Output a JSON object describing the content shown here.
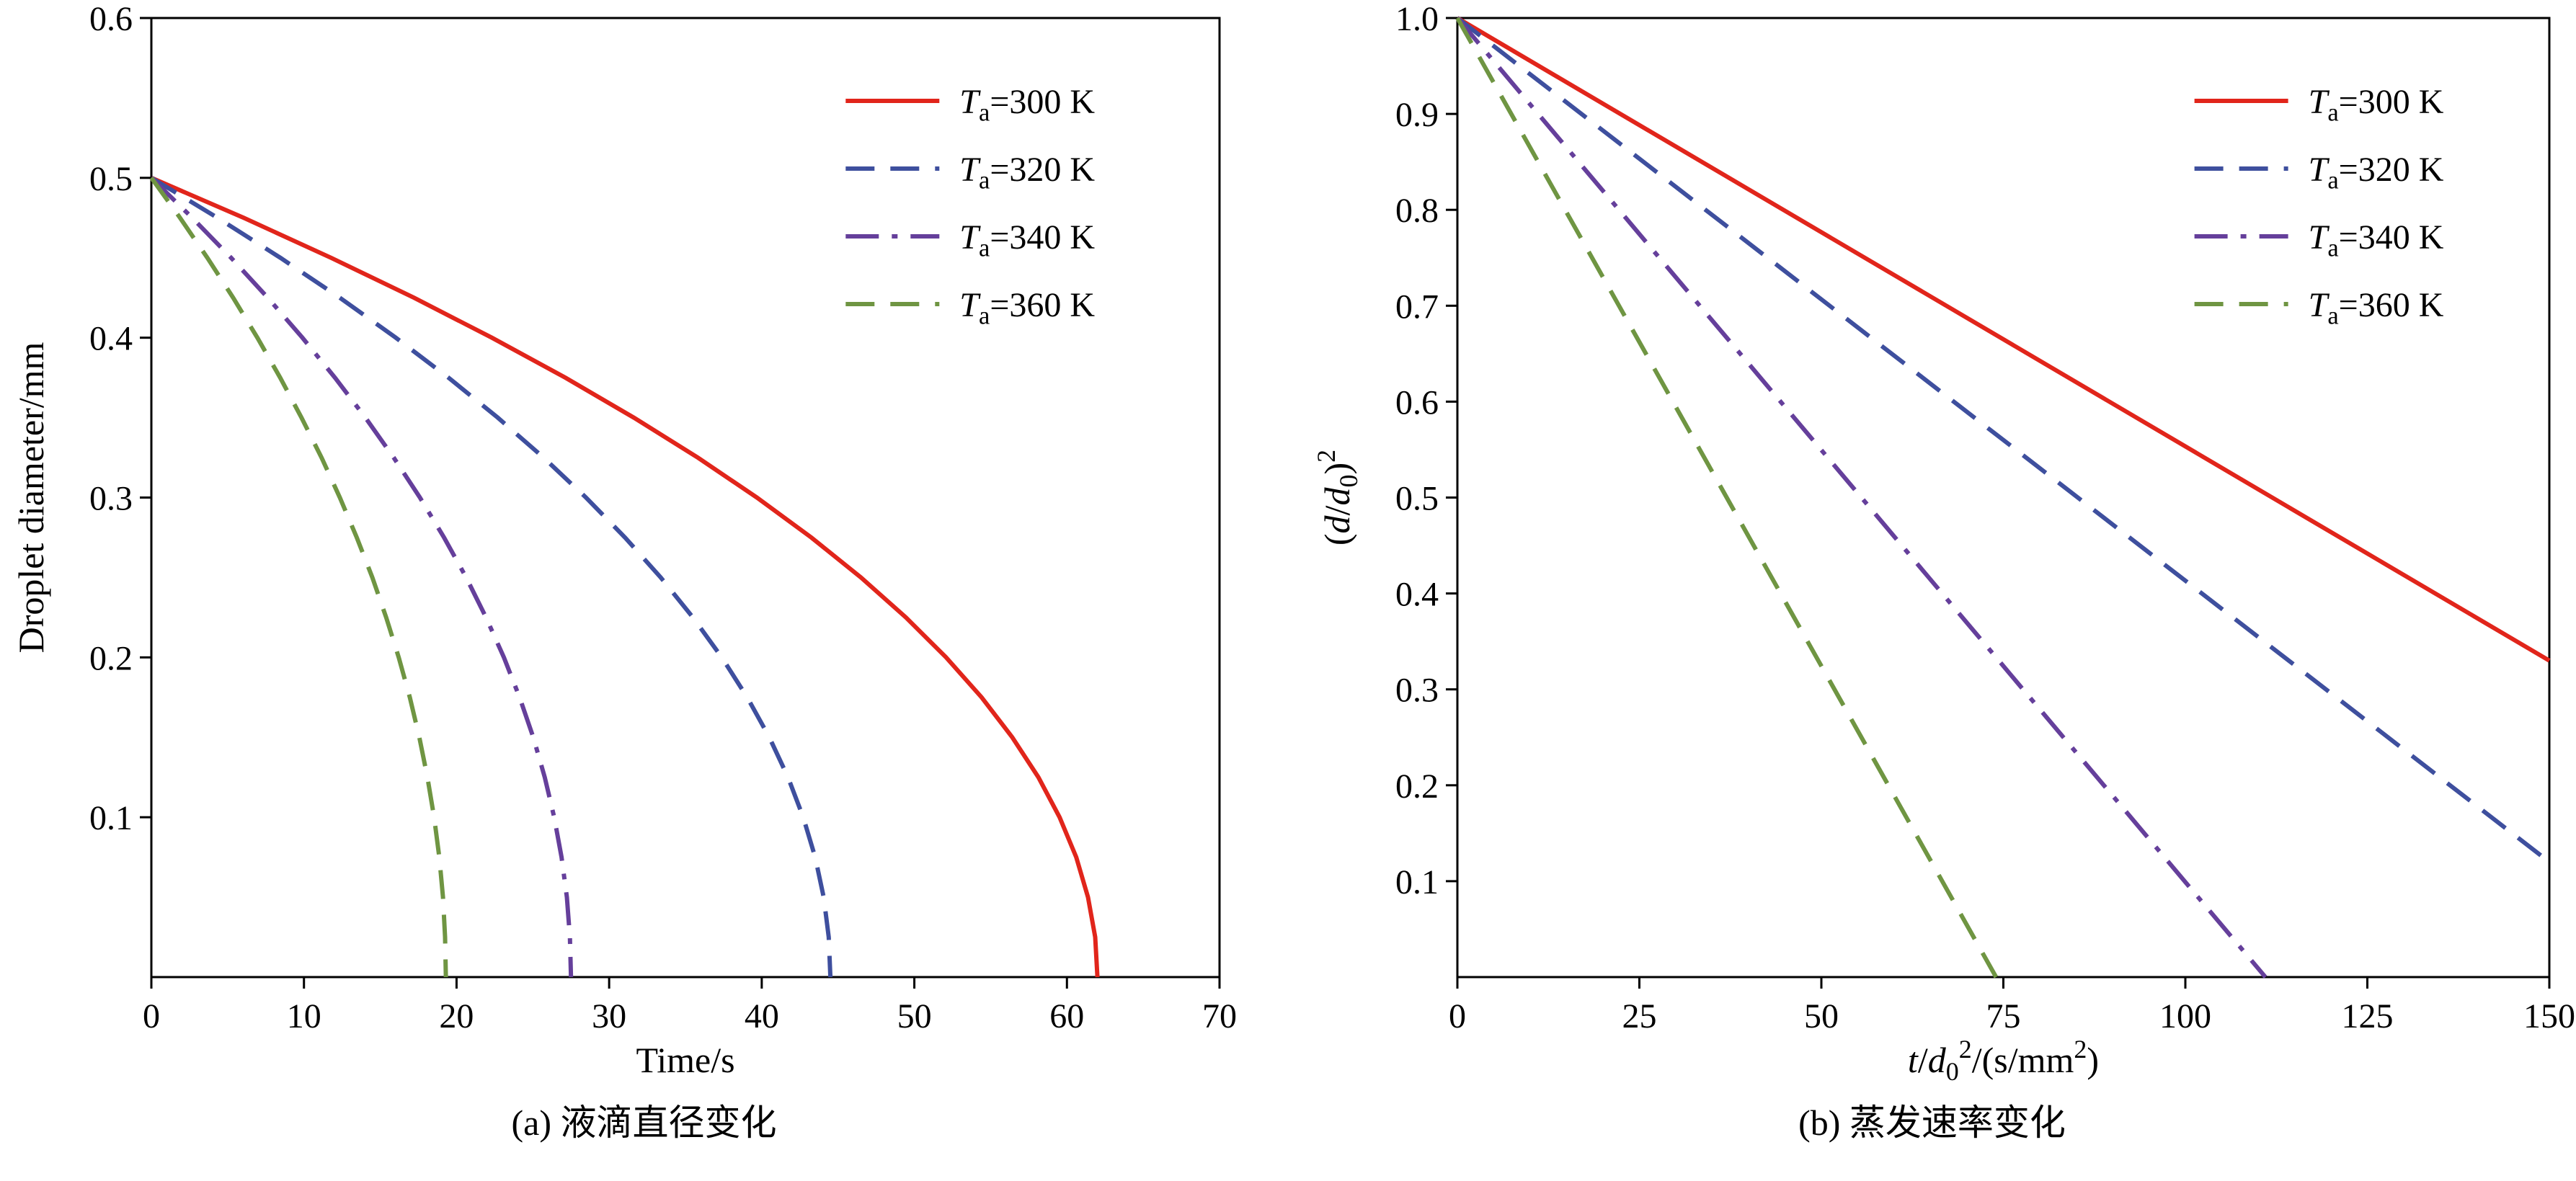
{
  "figure": {
    "background": "#ffffff",
    "axis_color": "#000000"
  },
  "chart_data": [
    {
      "id": "chart-a",
      "type": "line",
      "caption": "(a) 液滴直径变化",
      "xlabel": "Time/s",
      "ylabel": "Droplet diameter/mm",
      "xlim": [
        0,
        70
      ],
      "ylim": [
        0,
        0.6
      ],
      "xticks": [
        [
          0,
          "0"
        ],
        [
          10,
          "10"
        ],
        [
          20,
          "20"
        ],
        [
          30,
          "30"
        ],
        [
          40,
          "40"
        ],
        [
          50,
          "50"
        ],
        [
          60,
          "60"
        ],
        [
          70,
          "70"
        ]
      ],
      "yticks": [
        [
          0.1,
          "0.1"
        ],
        [
          0.2,
          "0.2"
        ],
        [
          0.3,
          "0.3"
        ],
        [
          0.4,
          "0.4"
        ],
        [
          0.5,
          "0.5"
        ],
        [
          0.6,
          "0.6"
        ]
      ],
      "grid": false,
      "legend_position": "top-right",
      "series": [
        {
          "label": "Ta=300 K",
          "label_rich": [
            {
              "t": "T",
              "i": true
            },
            {
              "t": "a",
              "sub": true
            },
            {
              "t": "=300 K"
            }
          ],
          "color": "#e1251b",
          "style": "solid",
          "points": [
            [
              0,
              0.5
            ],
            [
              6.05,
              0.475
            ],
            [
              11.78,
              0.45
            ],
            [
              17.21,
              0.425
            ],
            [
              22.32,
              0.4
            ],
            [
              27.13,
              0.375
            ],
            [
              31.62,
              0.35
            ],
            [
              35.81,
              0.325
            ],
            [
              39.68,
              0.3
            ],
            [
              43.25,
              0.275
            ],
            [
              46.5,
              0.25
            ],
            [
              49.45,
              0.225
            ],
            [
              52.08,
              0.2
            ],
            [
              54.41,
              0.175
            ],
            [
              56.42,
              0.15
            ],
            [
              58.13,
              0.125
            ],
            [
              59.52,
              0.1
            ],
            [
              60.61,
              0.075
            ],
            [
              61.38,
              0.05
            ],
            [
              61.85,
              0.025
            ],
            [
              62,
              0
            ]
          ]
        },
        {
          "label": "Ta=320 K",
          "label_rich": [
            {
              "t": "T",
              "i": true
            },
            {
              "t": "a",
              "sub": true
            },
            {
              "t": "=320 K"
            }
          ],
          "color": "#3e4f9e",
          "style": "dashed",
          "points": [
            [
              0,
              0.5
            ],
            [
              4.34,
              0.475
            ],
            [
              8.46,
              0.45
            ],
            [
              12.35,
              0.425
            ],
            [
              16.02,
              0.4
            ],
            [
              19.47,
              0.375
            ],
            [
              22.7,
              0.35
            ],
            [
              25.7,
              0.325
            ],
            [
              28.48,
              0.3
            ],
            [
              31.04,
              0.275
            ],
            [
              33.38,
              0.25
            ],
            [
              35.49,
              0.225
            ],
            [
              37.38,
              0.2
            ],
            [
              39.05,
              0.175
            ],
            [
              40.5,
              0.15
            ],
            [
              41.72,
              0.125
            ],
            [
              42.72,
              0.1
            ],
            [
              43.5,
              0.075
            ],
            [
              44.06,
              0.05
            ],
            [
              44.39,
              0.025
            ],
            [
              44.5,
              0
            ]
          ]
        },
        {
          "label": "Ta=340 K",
          "label_rich": [
            {
              "t": "T",
              "i": true
            },
            {
              "t": "a",
              "sub": true
            },
            {
              "t": "=340 K"
            }
          ],
          "color": "#653f9b",
          "style": "dashdot",
          "points": [
            [
              0,
              0.5
            ],
            [
              2.68,
              0.475
            ],
            [
              5.23,
              0.45
            ],
            [
              7.63,
              0.425
            ],
            [
              9.9,
              0.4
            ],
            [
              12.03,
              0.375
            ],
            [
              14.03,
              0.35
            ],
            [
              15.88,
              0.325
            ],
            [
              17.6,
              0.3
            ],
            [
              19.18,
              0.275
            ],
            [
              20.63,
              0.25
            ],
            [
              21.93,
              0.225
            ],
            [
              23.1,
              0.2
            ],
            [
              24.13,
              0.175
            ],
            [
              25.03,
              0.15
            ],
            [
              25.78,
              0.125
            ],
            [
              26.4,
              0.1
            ],
            [
              26.88,
              0.075
            ],
            [
              27.23,
              0.05
            ],
            [
              27.43,
              0.025
            ],
            [
              27.5,
              0
            ]
          ]
        },
        {
          "label": "Ta=360 K",
          "label_rich": [
            {
              "t": "T",
              "i": true
            },
            {
              "t": "a",
              "sub": true
            },
            {
              "t": "=360 K"
            }
          ],
          "color": "#6f9542",
          "style": "dashed",
          "points": [
            [
              0,
              0.5
            ],
            [
              1.88,
              0.475
            ],
            [
              3.67,
              0.45
            ],
            [
              5.36,
              0.425
            ],
            [
              6.95,
              0.4
            ],
            [
              8.44,
              0.375
            ],
            [
              9.84,
              0.35
            ],
            [
              11.15,
              0.325
            ],
            [
              12.35,
              0.3
            ],
            [
              13.46,
              0.275
            ],
            [
              14.48,
              0.25
            ],
            [
              15.39,
              0.225
            ],
            [
              16.21,
              0.2
            ],
            [
              16.94,
              0.175
            ],
            [
              17.56,
              0.15
            ],
            [
              18.09,
              0.125
            ],
            [
              18.53,
              0.1
            ],
            [
              18.87,
              0.075
            ],
            [
              19.11,
              0.05
            ],
            [
              19.25,
              0.025
            ],
            [
              19.3,
              0
            ]
          ]
        }
      ]
    },
    {
      "id": "chart-b",
      "type": "line",
      "caption": "(b) 蒸发速率变化",
      "xlabel": "t/d₀²/(s/mm²)",
      "xlabel_rich": [
        {
          "t": "t",
          "i": true
        },
        {
          "t": "/"
        },
        {
          "t": "d",
          "i": true
        },
        {
          "t": "0",
          "sub": true
        },
        {
          "t": "2",
          "sup": true
        },
        {
          "t": "/(s/mm"
        },
        {
          "t": "2",
          "sup": true
        },
        {
          "t": ")"
        }
      ],
      "ylabel": "(d/d₀)²",
      "ylabel_rich": [
        {
          "t": "("
        },
        {
          "t": "d",
          "i": true
        },
        {
          "t": "/"
        },
        {
          "t": "d",
          "i": true
        },
        {
          "t": "0",
          "sub": true
        },
        {
          "t": ")"
        },
        {
          "t": "2",
          "sup": true
        }
      ],
      "xlim": [
        0,
        150
      ],
      "ylim": [
        0,
        1.0
      ],
      "xticks": [
        [
          0,
          "0"
        ],
        [
          25,
          "25"
        ],
        [
          50,
          "50"
        ],
        [
          75,
          "75"
        ],
        [
          100,
          "100"
        ],
        [
          125,
          "125"
        ],
        [
          150,
          "150"
        ]
      ],
      "yticks": [
        [
          0.1,
          "0.1"
        ],
        [
          0.2,
          "0.2"
        ],
        [
          0.3,
          "0.3"
        ],
        [
          0.4,
          "0.4"
        ],
        [
          0.5,
          "0.5"
        ],
        [
          0.6,
          "0.6"
        ],
        [
          0.7,
          "0.7"
        ],
        [
          0.8,
          "0.8"
        ],
        [
          0.9,
          "0.9"
        ],
        [
          1.0,
          "1.0"
        ]
      ],
      "grid": false,
      "legend_position": "top-right",
      "series": [
        {
          "label": "Ta=300 K",
          "label_rich": [
            {
              "t": "T",
              "i": true
            },
            {
              "t": "a",
              "sub": true
            },
            {
              "t": "=300 K"
            }
          ],
          "color": "#e1251b",
          "style": "solid",
          "points": [
            [
              0,
              1.0
            ],
            [
              150,
              0.33
            ]
          ]
        },
        {
          "label": "Ta=320 K",
          "label_rich": [
            {
              "t": "T",
              "i": true
            },
            {
              "t": "a",
              "sub": true
            },
            {
              "t": "=320 K"
            }
          ],
          "color": "#3e4f9e",
          "style": "dashed",
          "points": [
            [
              0,
              1.0
            ],
            [
              150,
              0.12
            ]
          ]
        },
        {
          "label": "Ta=340 K",
          "label_rich": [
            {
              "t": "T",
              "i": true
            },
            {
              "t": "a",
              "sub": true
            },
            {
              "t": "=340 K"
            }
          ],
          "color": "#653f9b",
          "style": "dashdot",
          "points": [
            [
              0,
              1.0
            ],
            [
              111,
              0
            ]
          ]
        },
        {
          "label": "Ta=360 K",
          "label_rich": [
            {
              "t": "T",
              "i": true
            },
            {
              "t": "a",
              "sub": true
            },
            {
              "t": "=360 K"
            }
          ],
          "color": "#6f9542",
          "style": "dashed",
          "points": [
            [
              0,
              1.0
            ],
            [
              74,
              0
            ]
          ]
        }
      ]
    }
  ]
}
